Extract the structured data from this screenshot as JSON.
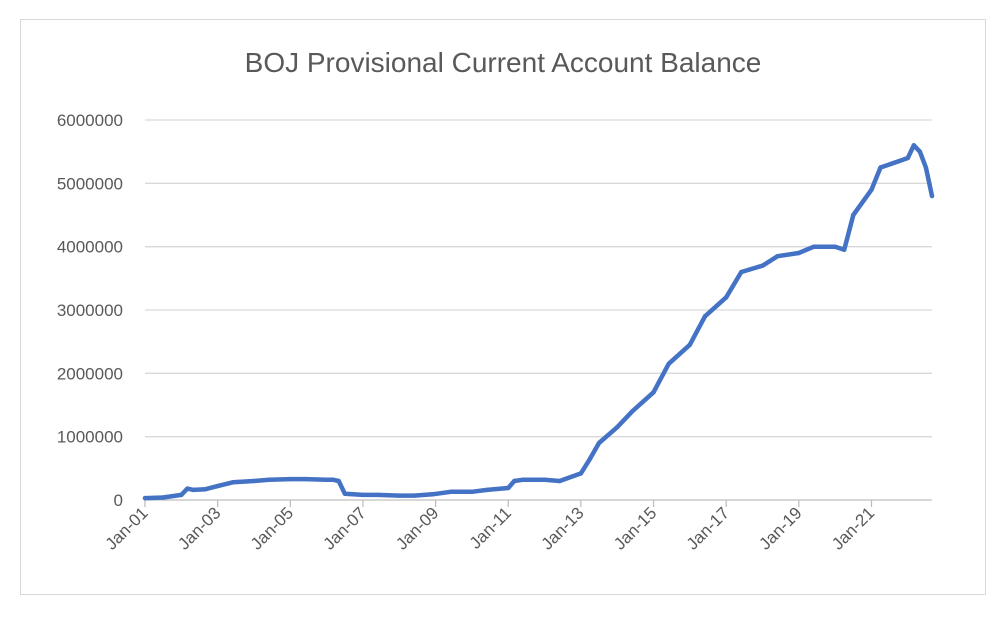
{
  "chart_data": {
    "type": "line",
    "title": "BOJ Provisional Current Account Balance",
    "xlabel": "",
    "ylabel": "",
    "ylim": [
      0,
      6000000
    ],
    "y_ticks": [
      "0",
      "1000000",
      "2000000",
      "3000000",
      "4000000",
      "5000000",
      "6000000"
    ],
    "x_ticks": [
      "Jan-01",
      "Jan-03",
      "Jan-05",
      "Jan-07",
      "Jan-09",
      "Jan-11",
      "Jan-13",
      "Jan-15",
      "Jan-17",
      "Jan-19",
      "Jan-21"
    ],
    "x_range": [
      "2001-01",
      "2022-09"
    ],
    "grid": "horizontal",
    "line_color": "#4472c4",
    "series": [
      {
        "x": [
          "2001-01",
          "2001-07",
          "2002-01",
          "2002-03",
          "2002-05",
          "2002-09",
          "2003-01",
          "2003-06",
          "2004-01",
          "2004-06",
          "2005-01",
          "2005-06",
          "2006-01",
          "2006-03",
          "2006-05",
          "2006-07",
          "2007-01",
          "2007-06",
          "2008-01",
          "2008-06",
          "2008-12",
          "2009-06",
          "2010-01",
          "2010-06",
          "2011-01",
          "2011-03",
          "2011-06",
          "2012-01",
          "2012-06",
          "2013-01",
          "2013-04",
          "2013-07",
          "2014-01",
          "2014-06",
          "2015-01",
          "2015-06",
          "2016-01",
          "2016-06",
          "2017-01",
          "2017-06",
          "2018-01",
          "2018-06",
          "2019-01",
          "2019-06",
          "2020-01",
          "2020-04",
          "2020-07",
          "2021-01",
          "2021-04",
          "2021-10",
          "2022-01",
          "2022-03",
          "2022-05",
          "2022-07",
          "2022-09"
        ],
        "values": [
          30000,
          40000,
          80000,
          180000,
          160000,
          170000,
          220000,
          280000,
          300000,
          320000,
          330000,
          330000,
          320000,
          320000,
          300000,
          100000,
          80000,
          80000,
          70000,
          70000,
          90000,
          130000,
          130000,
          160000,
          190000,
          300000,
          320000,
          320000,
          300000,
          420000,
          650000,
          900000,
          1150000,
          1400000,
          1700000,
          2150000,
          2450000,
          2900000,
          3200000,
          3600000,
          3700000,
          3850000,
          3900000,
          4000000,
          4000000,
          3950000,
          4500000,
          4900000,
          5250000,
          5350000,
          5400000,
          5600000,
          5500000,
          5250000,
          4800000
        ]
      }
    ]
  }
}
